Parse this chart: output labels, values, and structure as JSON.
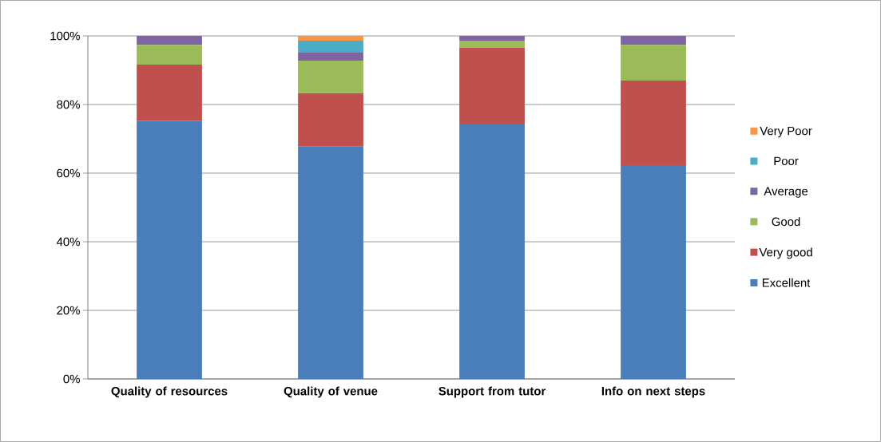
{
  "chart_data": {
    "type": "bar",
    "stacked": true,
    "categories": [
      "Quality of resources",
      "Quality of venue",
      "Support from tutor",
      "Info on next steps"
    ],
    "series": [
      {
        "name": "Excellent",
        "color": "#4a7ebb",
        "values": [
          75.3,
          67.7,
          74.4,
          62.3
        ]
      },
      {
        "name": "Very good",
        "color": "#c0504d",
        "values": [
          16.3,
          15.6,
          22.1,
          24.7
        ]
      },
      {
        "name": "Good",
        "color": "#9bbb59",
        "values": [
          5.8,
          9.5,
          2.1,
          10.4
        ]
      },
      {
        "name": "Average",
        "color": "#8064a2",
        "values": [
          2.6,
          2.3,
          1.4,
          2.6
        ]
      },
      {
        "name": "Poor",
        "color": "#4bacc6",
        "values": [
          0,
          3.5,
          0,
          0
        ]
      },
      {
        "name": "Very Poor",
        "color": "#f79646",
        "values": [
          0,
          1.4,
          0,
          0
        ]
      }
    ],
    "ylim": [
      0,
      100
    ],
    "yticks": [
      {
        "value": 0,
        "label": "0%"
      },
      {
        "value": 20,
        "label": "20%"
      },
      {
        "value": 40,
        "label": "40%"
      },
      {
        "value": 60,
        "label": "60%"
      },
      {
        "value": 80,
        "label": "80%"
      },
      {
        "value": 100,
        "label": "100%"
      }
    ],
    "grid": "y",
    "legend": "right"
  }
}
